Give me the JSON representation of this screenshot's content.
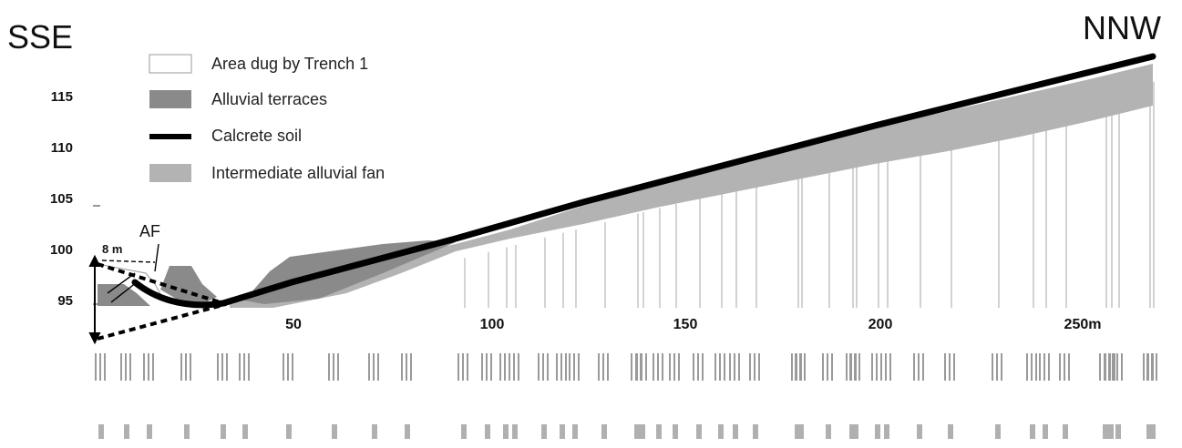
{
  "direction": {
    "left": "SSE",
    "right": "NNW"
  },
  "legend": [
    {
      "label": "Area dug by Trench 1",
      "swatch": "outline"
    },
    {
      "label": "Alluvial terraces",
      "swatch": "dark-gray"
    },
    {
      "label": "Calcrete soil",
      "swatch": "thick-black-line"
    },
    {
      "label": "Intermediate alluvial fan",
      "swatch": "light-gray"
    }
  ],
  "y_ticks": [
    "115",
    "110",
    "105",
    "100",
    "95"
  ],
  "x_ticks": [
    "50",
    "100",
    "150",
    "200",
    "250m"
  ],
  "annotations": {
    "af": "AF",
    "width": "8 m"
  },
  "colors": {
    "alluvial_terraces": "#8a8a8a",
    "alluvial_fan": "#b3b3b3",
    "calcrete": "#000000",
    "profile_lines": "#c4c4c4"
  },
  "profile_line_count": 44
}
